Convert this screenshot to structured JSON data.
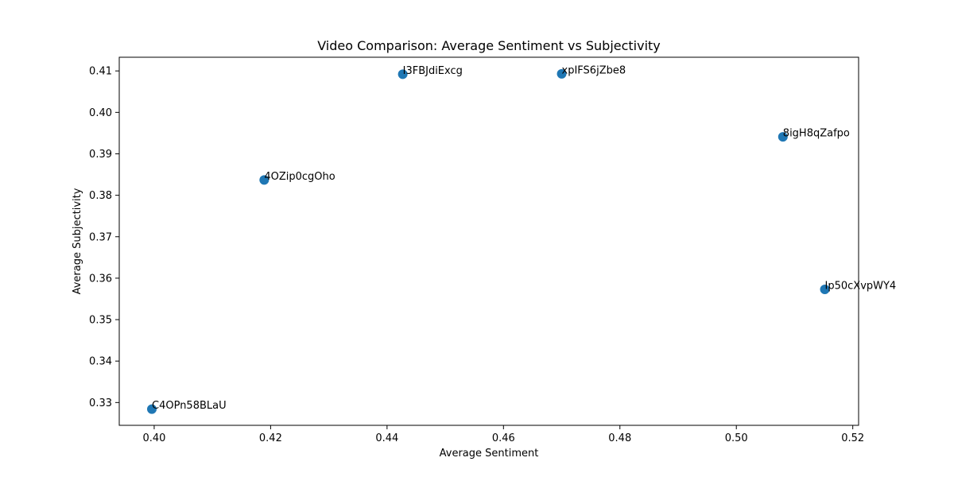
{
  "chart_data": {
    "type": "scatter",
    "title": "Video Comparison: Average Sentiment vs Subjectivity",
    "xlabel": "Average Sentiment",
    "ylabel": "Average Subjectivity",
    "xlim": [
      0.394,
      0.521
    ],
    "ylim": [
      0.3245,
      0.4133
    ],
    "xticks": [
      "0.40",
      "0.42",
      "0.44",
      "0.46",
      "0.48",
      "0.50",
      "0.52"
    ],
    "yticks": [
      "0.33",
      "0.34",
      "0.35",
      "0.36",
      "0.37",
      "0.38",
      "0.39",
      "0.40",
      "0.41"
    ],
    "grid": false,
    "legend": "none",
    "color": "#1f77b4",
    "points": [
      {
        "label": "C4OPn58BLaU",
        "x": 0.3996,
        "y": 0.3284
      },
      {
        "label": "4OZip0cgOho",
        "x": 0.4189,
        "y": 0.3837
      },
      {
        "label": "I3FBJdiExcg",
        "x": 0.4427,
        "y": 0.4092
      },
      {
        "label": "xpIFS6jZbe8",
        "x": 0.47,
        "y": 0.4093
      },
      {
        "label": "8igH8qZafpo",
        "x": 0.508,
        "y": 0.3941
      },
      {
        "label": "Ip50cXvpWY4",
        "x": 0.5152,
        "y": 0.3573
      }
    ]
  }
}
